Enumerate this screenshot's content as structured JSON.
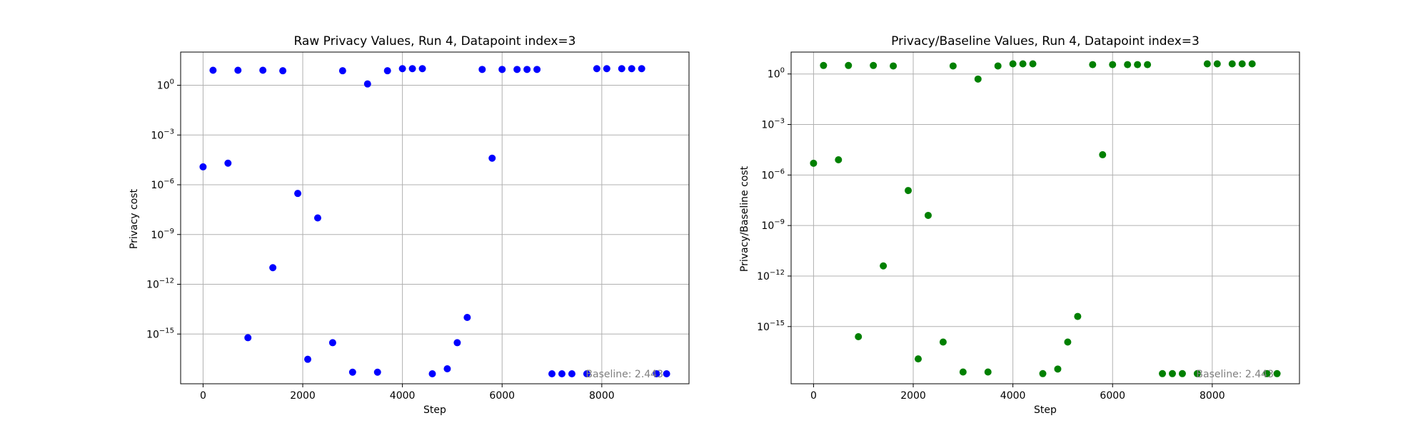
{
  "chart_data": [
    {
      "type": "scatter",
      "title": "Raw Privacy Values, Run 4, Datapoint index=3",
      "xlabel": "Step",
      "ylabel": "Privacy cost",
      "yscale": "log",
      "xlim": [
        -450,
        9750
      ],
      "ylim": [
        1e-18,
        100.0
      ],
      "xticks": [
        0,
        2000,
        4000,
        6000,
        8000
      ],
      "xtick_labels": [
        "0",
        "2000",
        "4000",
        "6000",
        "8000"
      ],
      "yticks": [
        1e-15,
        1e-12,
        1e-09,
        1e-06,
        0.001,
        1
      ],
      "ytick_labels": [
        {
          "base": "10",
          "exp": "−15"
        },
        {
          "base": "10",
          "exp": "−12"
        },
        {
          "base": "10",
          "exp": "−9"
        },
        {
          "base": "10",
          "exp": "−6"
        },
        {
          "base": "10",
          "exp": "−3"
        },
        {
          "base": "10",
          "exp": "0"
        }
      ],
      "grid": true,
      "annotation": "Baseline: 2.443",
      "color": "#0000ff",
      "x": [
        0,
        200,
        500,
        700,
        900,
        1200,
        1400,
        1600,
        1900,
        2100,
        2300,
        2600,
        2800,
        3000,
        3300,
        3500,
        3700,
        4000,
        4200,
        4400,
        4600,
        4900,
        5100,
        5300,
        5600,
        5800,
        6000,
        6300,
        6500,
        6700,
        7000,
        7200,
        7400,
        7700,
        7900,
        8100,
        8400,
        8600,
        8800,
        9100,
        9300
      ],
      "y": [
        1.2e-05,
        8,
        2e-05,
        8,
        6e-16,
        8,
        1e-11,
        7.5,
        3e-07,
        3e-17,
        1e-08,
        3e-16,
        7.5,
        5e-18,
        1.2,
        5e-18,
        7.5,
        10,
        10,
        10,
        4e-18,
        8e-18,
        3e-16,
        1e-14,
        9,
        4e-05,
        9,
        9,
        9,
        9,
        4e-18,
        4e-18,
        4e-18,
        4e-18,
        10,
        10,
        10,
        10,
        10,
        4e-18,
        4e-18
      ]
    },
    {
      "type": "scatter",
      "title": "Privacy/Baseline Values, Run 4, Datapoint index=3",
      "xlabel": "Step",
      "ylabel": "Privacy/Baseline cost",
      "yscale": "log",
      "xlim": [
        -450,
        9750
      ],
      "ylim": [
        4e-19,
        20.0
      ],
      "xticks": [
        0,
        2000,
        4000,
        6000,
        8000
      ],
      "xtick_labels": [
        "0",
        "2000",
        "4000",
        "6000",
        "8000"
      ],
      "yticks": [
        1e-15,
        1e-12,
        1e-09,
        1e-06,
        0.001,
        1
      ],
      "ytick_labels": [
        {
          "base": "10",
          "exp": "−15"
        },
        {
          "base": "10",
          "exp": "−12"
        },
        {
          "base": "10",
          "exp": "−9"
        },
        {
          "base": "10",
          "exp": "−6"
        },
        {
          "base": "10",
          "exp": "−3"
        },
        {
          "base": "10",
          "exp": "0"
        }
      ],
      "grid": true,
      "annotation": "Baseline: 2.443",
      "color": "#008000",
      "x": [
        0,
        200,
        500,
        700,
        900,
        1200,
        1400,
        1600,
        1900,
        2100,
        2300,
        2600,
        2800,
        3000,
        3300,
        3500,
        3700,
        4000,
        4200,
        4400,
        4600,
        4900,
        5100,
        5300,
        5600,
        5800,
        6000,
        6300,
        6500,
        6700,
        7000,
        7200,
        7400,
        7700,
        7900,
        8100,
        8400,
        8600,
        8800,
        9100,
        9300
      ],
      "y": [
        5e-06,
        3.2,
        8e-06,
        3.2,
        2.5e-16,
        3.2,
        4e-12,
        3,
        1.2e-07,
        1.2e-17,
        4e-09,
        1.2e-16,
        3,
        2e-18,
        0.5,
        2e-18,
        3,
        4,
        4,
        4,
        1.6e-18,
        3e-18,
        1.2e-16,
        4e-15,
        3.6,
        1.6e-05,
        3.6,
        3.6,
        3.6,
        3.6,
        1.6e-18,
        1.6e-18,
        1.6e-18,
        1.6e-18,
        4,
        4,
        4,
        4,
        4,
        1.6e-18,
        1.6e-18
      ]
    }
  ]
}
